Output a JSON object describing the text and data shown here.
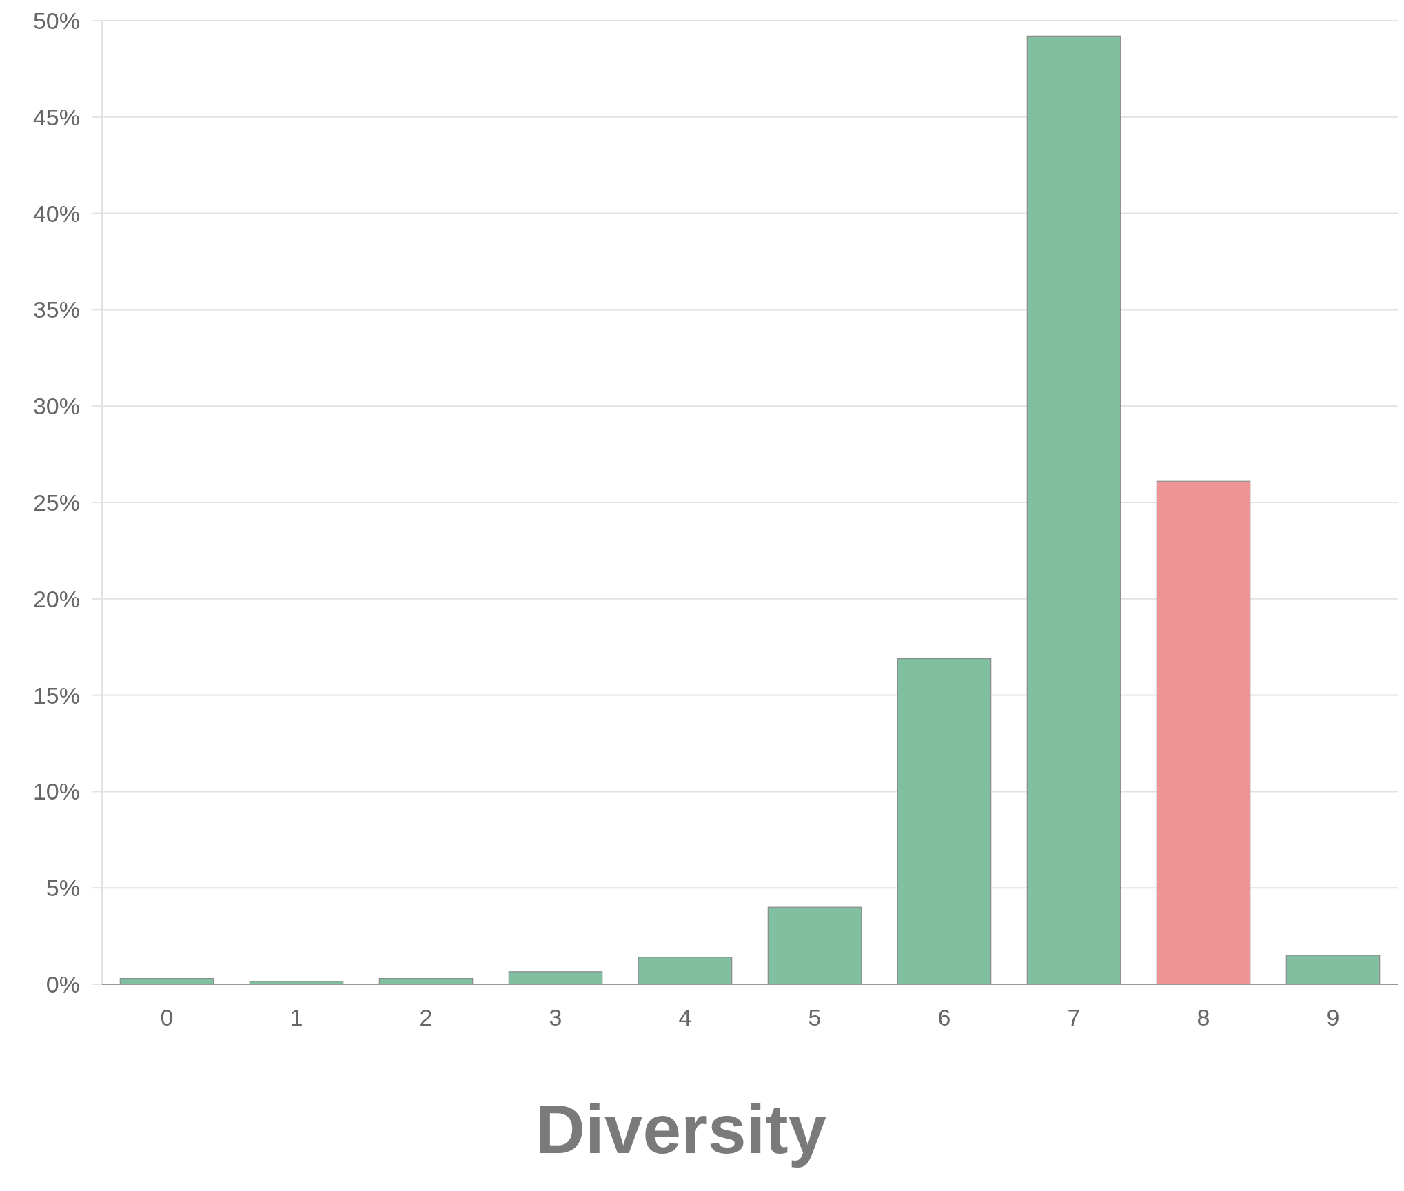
{
  "chart_data": {
    "type": "bar",
    "xlabel": "Diversity",
    "categories": [
      "0",
      "1",
      "2",
      "3",
      "4",
      "5",
      "6",
      "7",
      "8",
      "9"
    ],
    "values": [
      0.3,
      0.15,
      0.3,
      0.65,
      1.4,
      4.0,
      16.9,
      49.2,
      26.1,
      1.5
    ],
    "colors": [
      "#80bf9f",
      "#80bf9f",
      "#80bf9f",
      "#80bf9f",
      "#80bf9f",
      "#80bf9f",
      "#80bf9f",
      "#80bf9f",
      "#ee9494",
      "#80bf9f"
    ],
    "ylim": [
      0,
      50
    ],
    "yticks": [
      {
        "value": 0,
        "label": "0%"
      },
      {
        "value": 5,
        "label": "5%"
      },
      {
        "value": 10,
        "label": "10%"
      },
      {
        "value": 15,
        "label": "15%"
      },
      {
        "value": 20,
        "label": "20%"
      },
      {
        "value": 25,
        "label": "25%"
      },
      {
        "value": 30,
        "label": "30%"
      },
      {
        "value": 35,
        "label": "35%"
      },
      {
        "value": 40,
        "label": "40%"
      },
      {
        "value": 45,
        "label": "45%"
      },
      {
        "value": 50,
        "label": "50%"
      }
    ],
    "grid": "y"
  }
}
